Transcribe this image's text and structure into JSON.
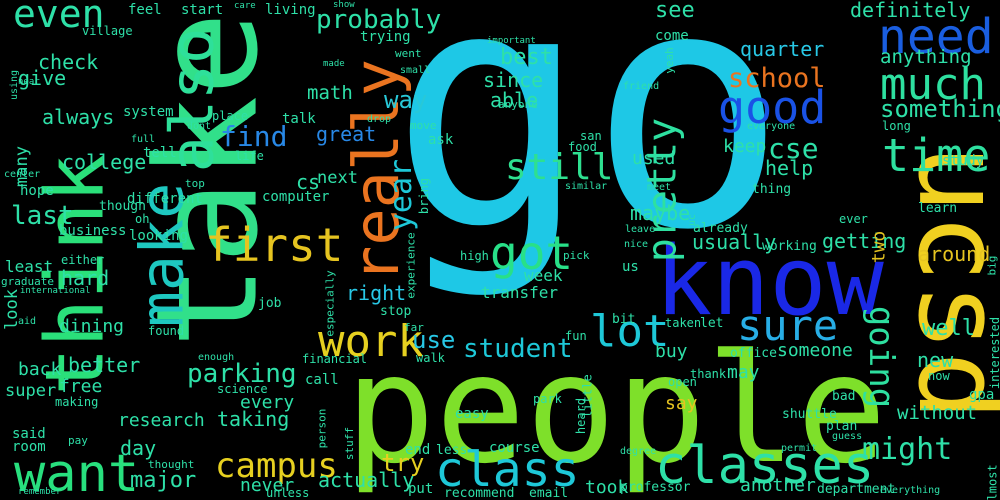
{
  "background": "#000000",
  "words": [
    {
      "text": "go",
      "color": "#1ec8e6"
    },
    {
      "text": "take",
      "color": "#31e08a"
    },
    {
      "text": "people",
      "color": "#7ee02a"
    },
    {
      "text": "ucsd",
      "color": "#f0d020"
    },
    {
      "text": "know",
      "color": "#1a28e6"
    },
    {
      "text": "think",
      "color": "#2ae07a"
    },
    {
      "text": "really",
      "color": "#ea7420"
    },
    {
      "text": "make",
      "color": "#1ec8c0"
    },
    {
      "text": "also",
      "color": "#2ee09a"
    },
    {
      "text": "want",
      "color": "#28e07e"
    },
    {
      "text": "class",
      "color": "#1ec8d8"
    },
    {
      "text": "classes",
      "color": "#2ee0a8"
    },
    {
      "text": "need",
      "color": "#1a5ee0"
    },
    {
      "text": "good",
      "color": "#1a52e6"
    },
    {
      "text": "much",
      "color": "#2ee0a0"
    },
    {
      "text": "time",
      "color": "#2ee0a0"
    },
    {
      "text": "sure",
      "color": "#28aee6"
    },
    {
      "text": "pretty",
      "color": "#2ee0a0"
    },
    {
      "text": "first",
      "color": "#e6c420"
    },
    {
      "text": "got",
      "color": "#28e088"
    },
    {
      "text": "work",
      "color": "#e6d020"
    },
    {
      "text": "lot",
      "color": "#1ec8d8"
    },
    {
      "text": "still",
      "color": "#2ee090"
    },
    {
      "text": "campus",
      "color": "#e6d020"
    },
    {
      "text": "going",
      "color": "#2ee0a0"
    },
    {
      "text": "even",
      "color": "#2ee0a8"
    },
    {
      "text": "probably",
      "color": "#2ee0a8"
    },
    {
      "text": "year",
      "color": "#1ec8d8"
    },
    {
      "text": "might",
      "color": "#2ee0a8"
    },
    {
      "text": "student",
      "color": "#1ec8d8"
    },
    {
      "text": "parking",
      "color": "#2ee0a8"
    },
    {
      "text": "school",
      "color": "#ea7420"
    },
    {
      "text": "cse",
      "color": "#2ee0a8"
    },
    {
      "text": "find",
      "color": "#2888e6"
    },
    {
      "text": "last",
      "color": "#2ee0a8"
    },
    {
      "text": "way",
      "color": "#28c8d8"
    },
    {
      "text": "something",
      "color": "#2ee0a8"
    },
    {
      "text": "try",
      "color": "#e6d020"
    },
    {
      "text": "major",
      "color": "#2ee0a8"
    },
    {
      "text": "use",
      "color": "#28c8e6"
    },
    {
      "text": "right",
      "color": "#28c8e6"
    },
    {
      "text": "quarter",
      "color": "#28c8e6"
    },
    {
      "text": "definitely",
      "color": "#2ee0a8"
    },
    {
      "text": "see",
      "color": "#2ee0a8"
    },
    {
      "text": "best",
      "color": "#2ee0a8"
    },
    {
      "text": "college",
      "color": "#2ee0a8"
    },
    {
      "text": "around",
      "color": "#e6c420"
    },
    {
      "text": "well",
      "color": "#2ee0a8"
    },
    {
      "text": "taking",
      "color": "#2ee0a8"
    },
    {
      "text": "help",
      "color": "#2ee0a8"
    },
    {
      "text": "always",
      "color": "#2ee0a8"
    },
    {
      "text": "getting",
      "color": "#2ee0a8"
    },
    {
      "text": "math",
      "color": "#2ee0a8"
    },
    {
      "text": "better",
      "color": "#2ee0a8"
    },
    {
      "text": "since",
      "color": "#2ee0a8"
    },
    {
      "text": "anything",
      "color": "#2ee0a8"
    },
    {
      "text": "able",
      "color": "#2ee0a8"
    },
    {
      "text": "actually",
      "color": "#2ee0a8"
    },
    {
      "text": "usually",
      "color": "#2ee0a8"
    },
    {
      "text": "great",
      "color": "#2888e6"
    },
    {
      "text": "research",
      "color": "#2ee0a8"
    },
    {
      "text": "new",
      "color": "#2ee0a8"
    },
    {
      "text": "check",
      "color": "#2ee0a8"
    },
    {
      "text": "give",
      "color": "#2ee0a8"
    },
    {
      "text": "cs",
      "color": "#2ee0a8"
    },
    {
      "text": "maybe",
      "color": "#2ee0a8"
    },
    {
      "text": "back",
      "color": "#2ee0a8"
    },
    {
      "text": "hard",
      "color": "#2ee0a8"
    },
    {
      "text": "every",
      "color": "#2ee0a8"
    },
    {
      "text": "next",
      "color": "#2ee0a8"
    },
    {
      "text": "two",
      "color": "#e6c420"
    },
    {
      "text": "keep",
      "color": "#2ee0a8"
    },
    {
      "text": "someone",
      "color": "#2ee0a8"
    },
    {
      "text": "used",
      "color": "#2ee0a8"
    },
    {
      "text": "day",
      "color": "#2ee0a8"
    },
    {
      "text": "without",
      "color": "#2ee0a8"
    },
    {
      "text": "transfer",
      "color": "#2ee0a8"
    },
    {
      "text": "never",
      "color": "#2ee0a8"
    },
    {
      "text": "free",
      "color": "#2ee0a8"
    },
    {
      "text": "week",
      "color": "#2ee0a8"
    },
    {
      "text": "dining",
      "color": "#2ee0a8"
    },
    {
      "text": "may",
      "color": "#2ee0a8"
    },
    {
      "text": "buy",
      "color": "#2ee0a8"
    },
    {
      "text": "say",
      "color": "#e6c420"
    },
    {
      "text": "took",
      "color": "#2ee0a8"
    },
    {
      "text": "another",
      "color": "#2ee0a8"
    },
    {
      "text": "many",
      "color": "#2ee0a8"
    },
    {
      "text": "look",
      "color": "#2ee0a8"
    },
    {
      "text": "super",
      "color": "#2ee0a8"
    },
    {
      "text": "said",
      "color": "#2ee0a8"
    },
    {
      "text": "room",
      "color": "#2ee0a8"
    },
    {
      "text": "least",
      "color": "#2ee0a8"
    },
    {
      "text": "business",
      "color": "#2ee0a8"
    },
    {
      "text": "hope",
      "color": "#2ee0a8"
    },
    {
      "text": "feel",
      "color": "#2ee0a8"
    },
    {
      "text": "start",
      "color": "#2ee0a8"
    },
    {
      "text": "living",
      "color": "#2ee0a8"
    },
    {
      "text": "village",
      "color": "#2ee0a8"
    },
    {
      "text": "trying",
      "color": "#2ee0a8"
    },
    {
      "text": "system",
      "color": "#2ee0a8"
    },
    {
      "text": "place",
      "color": "#2ee0a8"
    },
    {
      "text": "talk",
      "color": "#2ee0a8"
    },
    {
      "text": "life",
      "color": "#2ee0a8"
    },
    {
      "text": "tell",
      "color": "#2ee0a8"
    },
    {
      "text": "different",
      "color": "#2ee0a8"
    },
    {
      "text": "looking",
      "color": "#2ee0a8"
    },
    {
      "text": "computer",
      "color": "#2ee0a8"
    },
    {
      "text": "ask",
      "color": "#2ee0a8"
    },
    {
      "text": "food",
      "color": "#2ee0a8"
    },
    {
      "text": "study",
      "color": "#2ee0a8"
    },
    {
      "text": "learn",
      "color": "#2ee0a8"
    },
    {
      "text": "thing",
      "color": "#2ee0a8"
    },
    {
      "text": "already",
      "color": "#2ee0a8"
    },
    {
      "text": "working",
      "color": "#2ee0a8"
    },
    {
      "text": "job",
      "color": "#2ee0a8"
    },
    {
      "text": "found",
      "color": "#2ee0a8"
    },
    {
      "text": "call",
      "color": "#2ee0a8"
    },
    {
      "text": "science",
      "color": "#2ee0a8"
    },
    {
      "text": "office",
      "color": "#2ee0a8"
    },
    {
      "text": "thank",
      "color": "#2ee0a8"
    },
    {
      "text": "open",
      "color": "#2ee0a8"
    },
    {
      "text": "bad",
      "color": "#2ee0a8"
    },
    {
      "text": "shuttle",
      "color": "#2ee0a8"
    },
    {
      "text": "plan",
      "color": "#2ee0a8"
    },
    {
      "text": "easy",
      "color": "#2ee0a8"
    },
    {
      "text": "park",
      "color": "#2ee0a8"
    },
    {
      "text": "course",
      "color": "#2ee0a8"
    },
    {
      "text": "recommend",
      "color": "#2ee0a8"
    },
    {
      "text": "email",
      "color": "#2ee0a8"
    },
    {
      "text": "professor",
      "color": "#2ee0a8"
    },
    {
      "text": "department",
      "color": "#2ee0a8"
    },
    {
      "text": "everything",
      "color": "#2ee0a8"
    },
    {
      "text": "end",
      "color": "#2ee0a8"
    },
    {
      "text": "less",
      "color": "#2ee0a8"
    },
    {
      "text": "put",
      "color": "#2ee0a8"
    },
    {
      "text": "stop",
      "color": "#2ee0a8"
    },
    {
      "text": "bit",
      "color": "#2ee0a8"
    },
    {
      "text": "taken",
      "color": "#2ee0a8"
    },
    {
      "text": "let",
      "color": "#2ee0a8"
    },
    {
      "text": "fun",
      "color": "#2ee0a8"
    },
    {
      "text": "high",
      "color": "#2ee0a8"
    },
    {
      "text": "pick",
      "color": "#2ee0a8"
    },
    {
      "text": "us",
      "color": "#2ee0a8"
    },
    {
      "text": "ever",
      "color": "#2ee0a8"
    },
    {
      "text": "gpa",
      "color": "#2ee0a8"
    },
    {
      "text": "now",
      "color": "#2ee0a8"
    },
    {
      "text": "almost",
      "color": "#2ee0a8"
    },
    {
      "text": "big",
      "color": "#2ee0a8"
    },
    {
      "text": "interested",
      "color": "#2ee0a8"
    },
    {
      "text": "though",
      "color": "#2ee0a8"
    },
    {
      "text": "oh",
      "color": "#2ee0a8"
    },
    {
      "text": "either",
      "color": "#2ee0a8"
    },
    {
      "text": "graduate",
      "color": "#2ee0a8"
    },
    {
      "text": "international",
      "color": "#2ee0a8"
    },
    {
      "text": "aid",
      "color": "#2ee0a8"
    },
    {
      "text": "pay",
      "color": "#2ee0a8"
    },
    {
      "text": "making",
      "color": "#2ee0a8"
    },
    {
      "text": "remember",
      "color": "#2ee0a8"
    },
    {
      "text": "unless",
      "color": "#2ee0a8"
    },
    {
      "text": "thought",
      "color": "#2ee0a8"
    },
    {
      "text": "enough",
      "color": "#2ee0a8"
    },
    {
      "text": "financial",
      "color": "#2ee0a8"
    },
    {
      "text": "person",
      "color": "#2ee0a8"
    },
    {
      "text": "stuff",
      "color": "#2ee0a8"
    },
    {
      "text": "walk",
      "color": "#2ee0a8"
    },
    {
      "text": "far",
      "color": "#2ee0a8"
    },
    {
      "text": "especially",
      "color": "#2ee0a8"
    },
    {
      "text": "experience",
      "color": "#2ee0a8"
    },
    {
      "text": "bring",
      "color": "#2ee0a8"
    },
    {
      "text": "little",
      "color": "#2ee0a8"
    },
    {
      "text": "heard",
      "color": "#2ee0a8"
    },
    {
      "text": "degree",
      "color": "#2ee0a8"
    },
    {
      "text": "guess",
      "color": "#2ee0a8"
    },
    {
      "text": "permit",
      "color": "#2ee0a8"
    },
    {
      "text": "similar",
      "color": "#2ee0a8"
    },
    {
      "text": "nice",
      "color": "#2ee0a8"
    },
    {
      "text": "leave",
      "color": "#2ee0a8"
    },
    {
      "text": "meet",
      "color": "#2ee0a8"
    },
    {
      "text": "uc",
      "color": "#2ee0a8"
    },
    {
      "text": "san",
      "color": "#2ee0a8"
    },
    {
      "text": "everyone",
      "color": "#2ee0a8"
    },
    {
      "text": "long",
      "color": "#2ee0a8"
    },
    {
      "text": "friend",
      "color": "#2ee0a8"
    },
    {
      "text": "yeah",
      "color": "#2ee0a8"
    },
    {
      "text": "come",
      "color": "#2ee0a8"
    },
    {
      "text": "anyone",
      "color": "#2ee0a8"
    },
    {
      "text": "important",
      "color": "#2ee0a8"
    },
    {
      "text": "went",
      "color": "#2ee0a8"
    },
    {
      "text": "small",
      "color": "#2ee0a8"
    },
    {
      "text": "show",
      "color": "#2ee0a8"
    },
    {
      "text": "care",
      "color": "#2ee0a8"
    },
    {
      "text": "made",
      "color": "#2ee0a8"
    },
    {
      "text": "drop",
      "color": "#2ee0a8"
    },
    {
      "text": "move",
      "color": "#2ee0a8"
    },
    {
      "text": "dont",
      "color": "#2ee0a8"
    },
    {
      "text": "full",
      "color": "#2ee0a8"
    },
    {
      "text": "center",
      "color": "#2ee0a8"
    },
    {
      "text": "top",
      "color": "#2ee0a8"
    },
    {
      "text": "using",
      "color": "#2ee0a8"
    },
    {
      "text": "near",
      "color": "#2ee0a8"
    }
  ]
}
